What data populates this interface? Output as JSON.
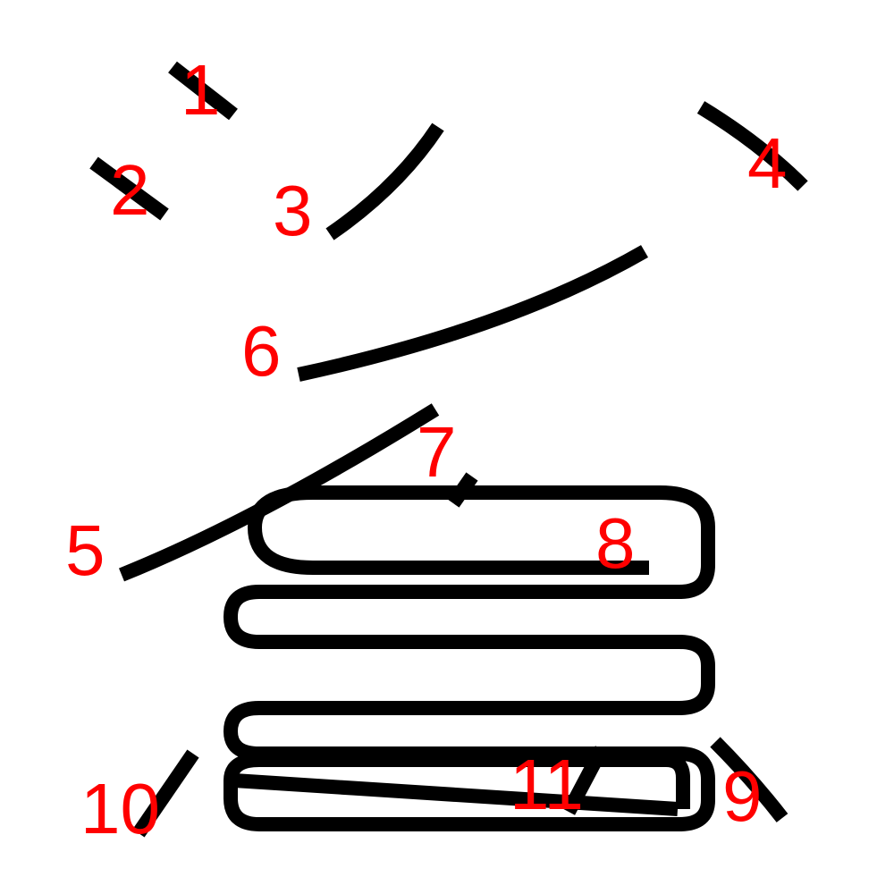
{
  "colors": {
    "background": "#ffffff",
    "stroke": "#000000",
    "label": "#ff0000"
  },
  "labels": {
    "l1": "1",
    "l2": "2",
    "l3": "3",
    "l4": "4",
    "l5": "5",
    "l6": "6",
    "l7": "7",
    "l8": "8",
    "l9": "9",
    "l10": "10",
    "l11": "11"
  }
}
